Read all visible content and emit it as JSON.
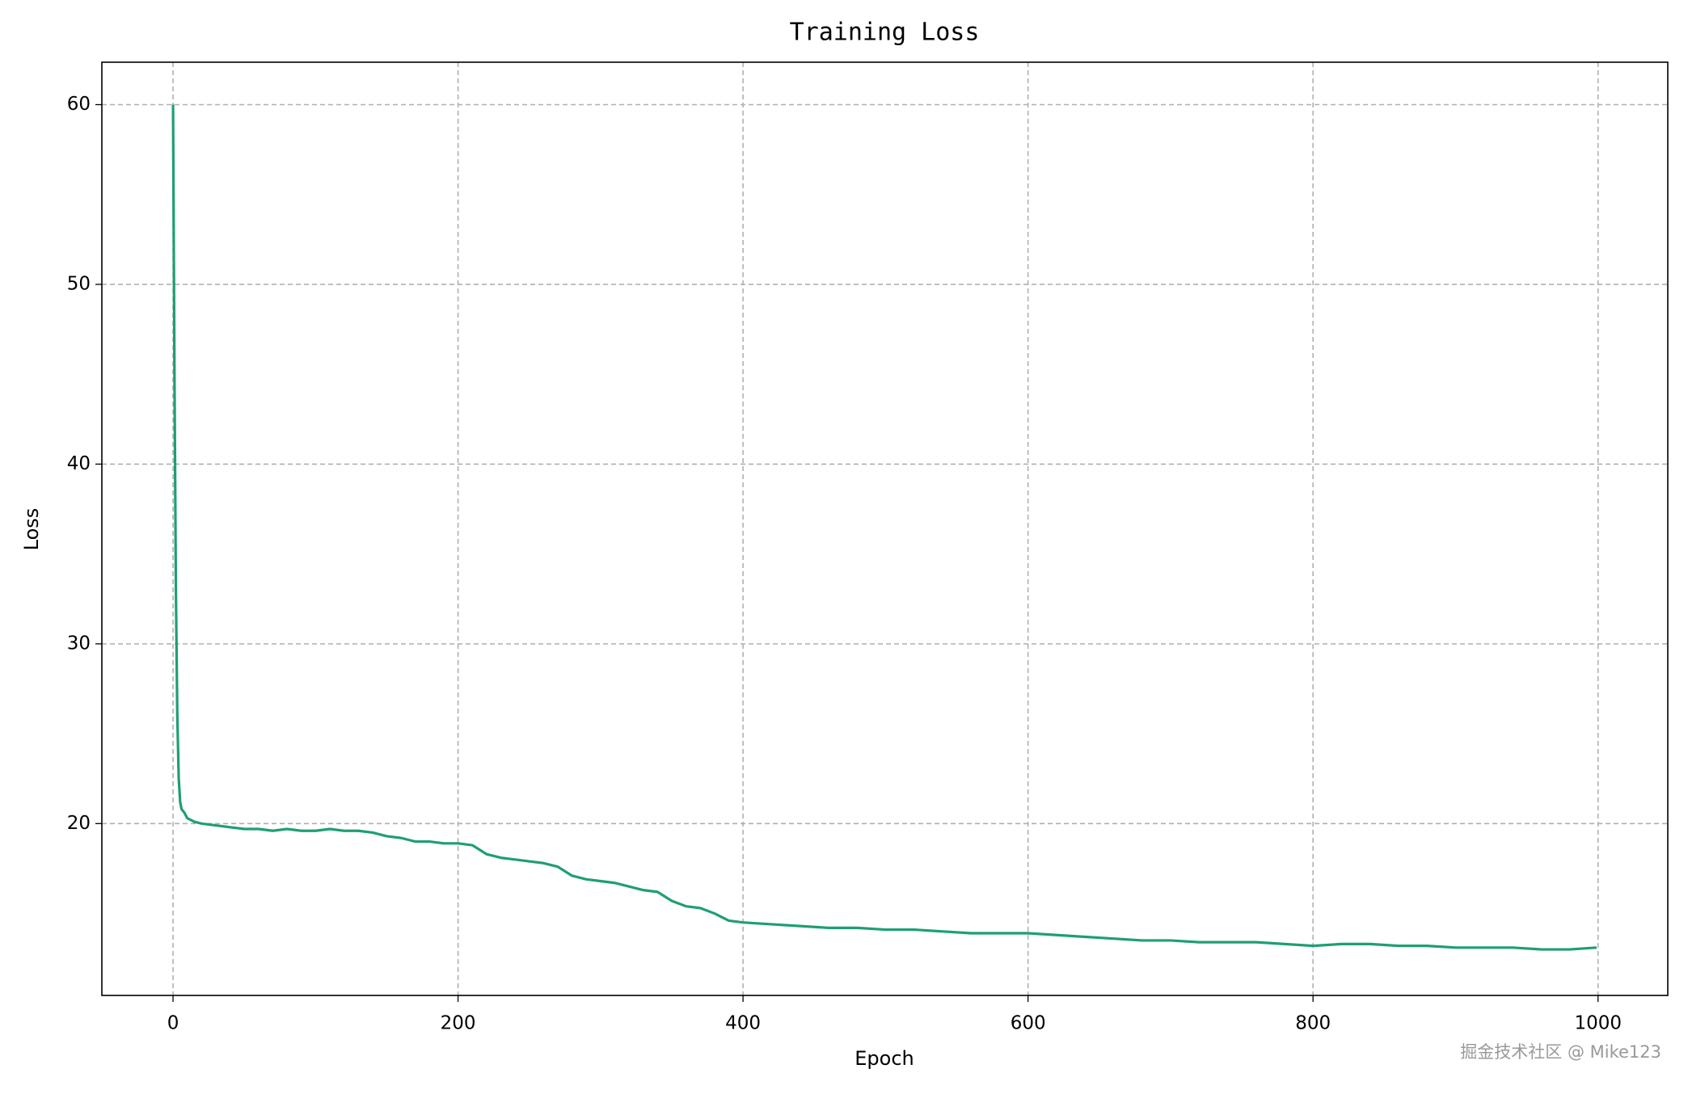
{
  "chart_data": {
    "type": "line",
    "title": "Training Loss",
    "x_label": "Epoch",
    "y_label": "Loss",
    "x": [
      0,
      1,
      2,
      3,
      4,
      5,
      6,
      8,
      10,
      15,
      20,
      30,
      40,
      50,
      60,
      70,
      80,
      90,
      100,
      110,
      120,
      130,
      140,
      150,
      160,
      170,
      180,
      190,
      200,
      210,
      220,
      230,
      240,
      250,
      260,
      270,
      280,
      290,
      300,
      310,
      320,
      330,
      340,
      350,
      360,
      370,
      380,
      390,
      400,
      420,
      440,
      460,
      480,
      500,
      520,
      540,
      560,
      580,
      600,
      620,
      640,
      660,
      680,
      700,
      720,
      740,
      760,
      780,
      800,
      820,
      840,
      860,
      880,
      900,
      920,
      940,
      960,
      980,
      999
    ],
    "values": [
      60,
      45,
      33,
      26,
      22.5,
      21.2,
      20.8,
      20.6,
      20.3,
      20.1,
      20.0,
      19.9,
      19.8,
      19.7,
      19.7,
      19.6,
      19.7,
      19.6,
      19.6,
      19.7,
      19.6,
      19.6,
      19.5,
      19.3,
      19.2,
      19.0,
      19.0,
      18.9,
      18.9,
      18.8,
      18.3,
      18.1,
      18.0,
      17.9,
      17.8,
      17.6,
      17.1,
      16.9,
      16.8,
      16.7,
      16.5,
      16.3,
      16.2,
      15.7,
      15.4,
      15.3,
      15.0,
      14.6,
      14.5,
      14.4,
      14.3,
      14.2,
      14.2,
      14.1,
      14.1,
      14.0,
      13.9,
      13.9,
      13.9,
      13.8,
      13.7,
      13.6,
      13.5,
      13.5,
      13.4,
      13.4,
      13.4,
      13.3,
      13.2,
      13.3,
      13.3,
      13.2,
      13.2,
      13.1,
      13.1,
      13.1,
      13.0,
      13.0,
      13.1
    ],
    "color": "#1f9e74",
    "xlim": [
      -49.95,
      1048.95
    ],
    "ylim": [
      10.44,
      62.36
    ],
    "xticks": [
      0,
      200,
      400,
      600,
      800,
      1000
    ],
    "yticks": [
      20,
      30,
      40,
      50,
      60
    ],
    "grid": true
  },
  "watermark": "掘金技术社区 @ Mike123"
}
